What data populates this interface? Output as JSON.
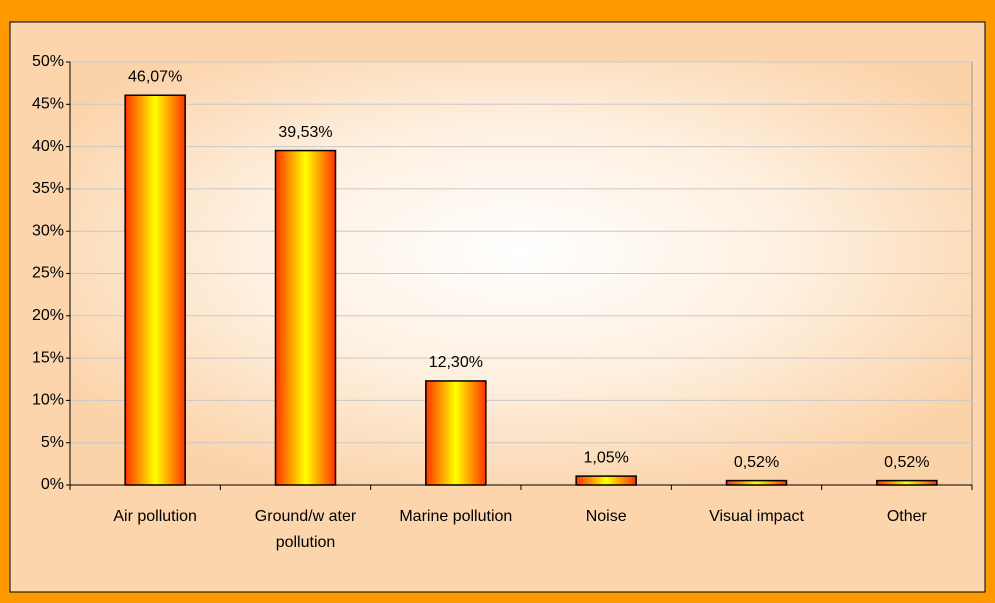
{
  "chart_data": {
    "type": "bar",
    "categories": [
      "Air pollution",
      "Ground/w ater pollution",
      "Marine pollution",
      "Noise",
      "Visual impact",
      "Other"
    ],
    "values": [
      46.07,
      39.53,
      12.3,
      1.05,
      0.52,
      0.52
    ],
    "value_labels": [
      "46,07%",
      "39,53%",
      "12,30%",
      "1,05%",
      "0,52%",
      "0,52%"
    ],
    "color": "#ff3300",
    "ylim": [
      0,
      50
    ],
    "yticks": [
      {
        "value": 0,
        "label": "0%"
      },
      {
        "value": 5,
        "label": "5%"
      },
      {
        "value": 10,
        "label": "10%"
      },
      {
        "value": 15,
        "label": "15%"
      },
      {
        "value": 20,
        "label": "20%"
      },
      {
        "value": 25,
        "label": "25%"
      },
      {
        "value": 30,
        "label": "30%"
      },
      {
        "value": 35,
        "label": "35%"
      },
      {
        "value": 40,
        "label": "40%"
      },
      {
        "value": 45,
        "label": "45%"
      },
      {
        "value": 50,
        "label": "50%"
      }
    ],
    "grid": true
  }
}
